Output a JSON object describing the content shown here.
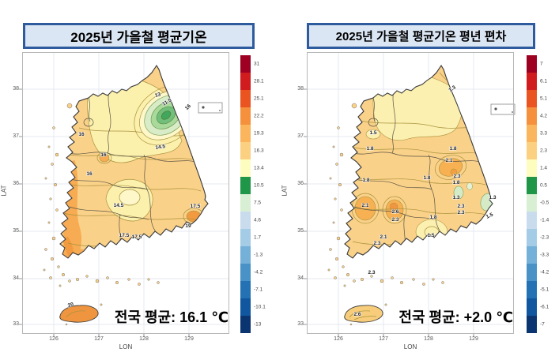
{
  "panels": [
    {
      "title": "2025년 가을철 평균기온",
      "summary": "전국 평균: 16.1 ℃",
      "axis": {
        "x_label": "LON",
        "y_label": "LAT",
        "x_ticks": [
          "126",
          "127",
          "128",
          "129"
        ],
        "y_ticks": [
          "38",
          "37",
          "36",
          "35",
          "34",
          "33"
        ]
      },
      "colorbar": {
        "values": [
          "31",
          "28.1",
          "25.1",
          "22.2",
          "19.3",
          "16.3",
          "13.4",
          "10.5",
          "7.5",
          "4.6",
          "1.7",
          "-1.3",
          "-4.2",
          "-7.1",
          "-10.1",
          "-13"
        ],
        "colors": [
          "#9e0022",
          "#d01c1f",
          "#ea5420",
          "#f5913d",
          "#fbb55c",
          "#fbd081",
          "#fdfdc0",
          "#1f9648",
          "#d9efd3",
          "#c9dcee",
          "#a5cce6",
          "#74b0d8",
          "#4892c7",
          "#2472b4",
          "#10579f",
          "#0b3570"
        ]
      },
      "labels": [
        "13",
        "11.5",
        "16",
        "16",
        "16",
        "16",
        "14.5",
        "14.5",
        "17.5",
        "19",
        "17.5",
        "17.5",
        "20"
      ]
    },
    {
      "title": "2025년 가을철 평균기온 평년 편차",
      "summary": "전국 평균: +2.0 ℃",
      "axis": {
        "x_label": "LON",
        "y_label": "LAT",
        "x_ticks": [
          "126",
          "127",
          "128",
          "129"
        ],
        "y_ticks": [
          "38",
          "37",
          "36",
          "35",
          "34",
          "33"
        ]
      },
      "colorbar": {
        "values": [
          "7",
          "6.1",
          "5.1",
          "4.2",
          "3.3",
          "2.3",
          "1.4",
          "0.5",
          "-0.5",
          "-1.4",
          "-2.3",
          "-3.3",
          "-4.2",
          "-5.1",
          "-6.1",
          "-7"
        ],
        "colors": [
          "#9e0022",
          "#d01c1f",
          "#ea5420",
          "#f5913d",
          "#fbb55c",
          "#fbd081",
          "#fdfdc0",
          "#1f9648",
          "#d9efd3",
          "#c9dcee",
          "#a5cce6",
          "#74b0d8",
          "#4892c7",
          "#2472b4",
          "#10579f",
          "#0b3570"
        ]
      },
      "labels": [
        "1.3",
        "1.5",
        "1.8",
        "1.8",
        "2.1",
        "2.3",
        "1.8",
        "1.8",
        "1.8",
        "1.3",
        "2.3",
        "2.3",
        "1.3",
        "1.5",
        "2.1",
        "2.6",
        "2.3",
        "1.8",
        "1.5",
        "2.1",
        "2.3",
        "2.3",
        "2.6"
      ]
    }
  ],
  "chart_data": [
    {
      "type": "heatmap",
      "subtype": "filled-contour-map",
      "title": "2025년 가을철 평균기온",
      "region": "South Korea",
      "units": "℃",
      "national_average": 16.1,
      "national_average_label": "전국 평균: 16.1 ℃",
      "xlabel": "LON",
      "ylabel": "LAT",
      "x_ticks": [
        126,
        127,
        128,
        129
      ],
      "y_ticks": [
        38,
        37,
        36,
        35,
        34,
        33
      ],
      "colorbar_ticks": [
        31,
        28.1,
        25.1,
        22.2,
        19.3,
        16.3,
        13.4,
        10.5,
        7.5,
        4.6,
        1.7,
        -1.3,
        -4.2,
        -7.1,
        -10.1,
        -13
      ],
      "contour_labels_shown": [
        13,
        11.5,
        16,
        16,
        16,
        16,
        14.5,
        14.5,
        17.5,
        19,
        17.5,
        17.5,
        20
      ],
      "pattern": "coolest 11.5–13 in northeastern mountains (green), 14.5–16 central/west, 17.5–19 along south and southeast coasts, ~20 on Jeju",
      "grid": true,
      "legend_position": "right-colorbar"
    },
    {
      "type": "heatmap",
      "subtype": "filled-contour-map",
      "title": "2025년 가을철 평균기온 평년 편차",
      "region": "South Korea",
      "units": "℃",
      "national_average": 2.0,
      "national_average_label": "전국 평균: +2.0 ℃",
      "xlabel": "LON",
      "ylabel": "LAT",
      "x_ticks": [
        126,
        127,
        128,
        129
      ],
      "y_ticks": [
        38,
        37,
        36,
        35,
        34,
        33
      ],
      "colorbar_ticks": [
        7,
        6.1,
        5.1,
        4.2,
        3.3,
        2.3,
        1.4,
        0.5,
        -0.5,
        -1.4,
        -2.3,
        -3.3,
        -4.2,
        -5.1,
        -6.1,
        -7
      ],
      "contour_labels_shown": [
        1.3,
        1.5,
        1.8,
        1.8,
        2.1,
        2.3,
        1.8,
        1.8,
        1.8,
        1.3,
        2.3,
        2.3,
        1.3,
        1.5,
        2.1,
        2.6,
        2.3,
        1.8,
        1.5,
        2.1,
        2.3,
        2.3,
        2.6
      ],
      "pattern": "anomaly +1.3 to +2.6 everywhere; largest +2.3–2.6 in southwest/center, smallest +1.3–1.5 along east coast; Jeju +2.6",
      "grid": true,
      "legend_position": "right-colorbar"
    }
  ]
}
